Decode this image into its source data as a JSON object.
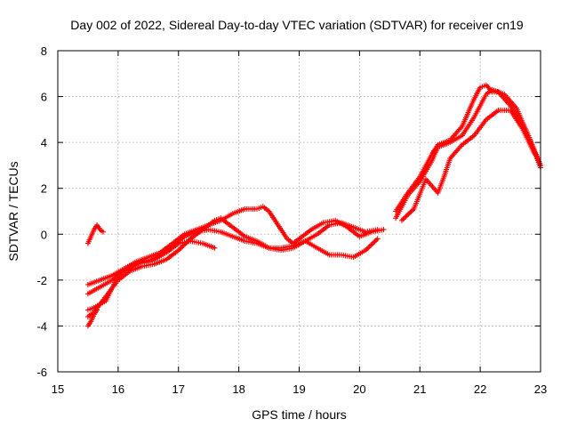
{
  "chart_data": {
    "type": "scatter",
    "title": "Day 002 of 2022, Sidereal Day-to-day VTEC variation (SDTVAR) for receiver cn19",
    "xlabel": "GPS time / hours",
    "ylabel": "SDTVAR / TECUs",
    "xlim": [
      15,
      23
    ],
    "ylim": [
      -6,
      8
    ],
    "xticks": [
      15,
      16,
      17,
      18,
      19,
      20,
      21,
      22,
      23
    ],
    "yticks": [
      -6,
      -4,
      -2,
      0,
      2,
      4,
      6,
      8
    ],
    "grid": true,
    "marker": "plus",
    "color": "#ff0000",
    "series": [
      {
        "name": "track-1",
        "points": [
          [
            15.5,
            -2.2
          ],
          [
            15.7,
            -2.0
          ],
          [
            15.9,
            -1.8
          ],
          [
            16.1,
            -1.5
          ],
          [
            16.3,
            -1.2
          ],
          [
            16.5,
            -1.0
          ],
          [
            16.7,
            -0.8
          ],
          [
            16.9,
            -0.4
          ],
          [
            17.1,
            0.0
          ],
          [
            17.3,
            0.2
          ],
          [
            17.5,
            0.4
          ],
          [
            17.7,
            0.6
          ],
          [
            17.9,
            0.9
          ],
          [
            18.1,
            1.1
          ],
          [
            18.3,
            1.1
          ],
          [
            18.4,
            1.2
          ],
          [
            18.5,
            1.0
          ],
          [
            18.6,
            0.6
          ],
          [
            18.7,
            0.2
          ],
          [
            18.8,
            -0.2
          ],
          [
            18.9,
            -0.4
          ],
          [
            19.0,
            -0.2
          ],
          [
            19.2,
            0.2
          ],
          [
            19.4,
            0.5
          ],
          [
            19.6,
            0.6
          ],
          [
            19.8,
            0.3
          ],
          [
            20.0,
            -0.1
          ],
          [
            20.2,
            0.1
          ],
          [
            20.4,
            0.2
          ]
        ]
      },
      {
        "name": "track-2",
        "points": [
          [
            15.5,
            -2.6
          ],
          [
            15.7,
            -2.3
          ],
          [
            15.9,
            -2.0
          ],
          [
            16.1,
            -1.6
          ],
          [
            16.3,
            -1.3
          ],
          [
            16.5,
            -1.2
          ],
          [
            16.7,
            -0.9
          ],
          [
            16.9,
            -0.5
          ],
          [
            17.1,
            -0.1
          ],
          [
            17.3,
            0.1
          ],
          [
            17.5,
            0.2
          ],
          [
            17.7,
            0.1
          ],
          [
            17.9,
            -0.1
          ],
          [
            18.1,
            -0.3
          ],
          [
            18.3,
            -0.4
          ],
          [
            18.5,
            -0.6
          ],
          [
            18.7,
            -0.7
          ],
          [
            18.9,
            -0.6
          ],
          [
            19.1,
            -0.3
          ],
          [
            19.3,
            0.0
          ],
          [
            19.5,
            0.4
          ],
          [
            19.7,
            0.5
          ],
          [
            19.9,
            0.3
          ],
          [
            20.1,
            0.1
          ],
          [
            20.3,
            0.2
          ]
        ]
      },
      {
        "name": "track-3",
        "points": [
          [
            15.5,
            -3.3
          ],
          [
            15.6,
            -3.2
          ],
          [
            15.8,
            -2.9
          ],
          [
            16.0,
            -1.8
          ],
          [
            16.2,
            -1.4
          ],
          [
            16.4,
            -1.2
          ],
          [
            16.6,
            -1.1
          ],
          [
            16.8,
            -0.8
          ],
          [
            17.0,
            -0.4
          ],
          [
            17.2,
            -0.3
          ],
          [
            17.4,
            -0.4
          ],
          [
            17.6,
            -0.6
          ]
        ]
      },
      {
        "name": "track-4",
        "points": [
          [
            15.5,
            -3.6
          ],
          [
            15.6,
            -3.4
          ],
          [
            15.8,
            -2.7
          ],
          [
            16.0,
            -2.0
          ],
          [
            16.2,
            -1.6
          ],
          [
            16.4,
            -1.4
          ],
          [
            16.6,
            -1.3
          ],
          [
            16.8,
            -1.1
          ],
          [
            17.0,
            -0.7
          ],
          [
            17.2,
            -0.2
          ],
          [
            17.4,
            0.2
          ],
          [
            17.6,
            0.6
          ],
          [
            17.7,
            0.7
          ],
          [
            17.9,
            0.3
          ],
          [
            18.1,
            -0.1
          ],
          [
            18.3,
            -0.3
          ],
          [
            18.5,
            -0.6
          ],
          [
            18.7,
            -0.6
          ],
          [
            18.9,
            -0.5
          ],
          [
            19.1,
            -0.3
          ],
          [
            19.3,
            -0.6
          ],
          [
            19.5,
            -0.9
          ],
          [
            19.7,
            -0.9
          ],
          [
            19.9,
            -1.0
          ],
          [
            20.1,
            -0.7
          ],
          [
            20.3,
            -0.2
          ]
        ]
      },
      {
        "name": "track-5",
        "points": [
          [
            15.5,
            -4.0
          ],
          [
            15.55,
            -3.8
          ],
          [
            15.6,
            -3.5
          ],
          [
            15.65,
            -3.3
          ]
        ]
      },
      {
        "name": "track-6",
        "points": [
          [
            15.5,
            -0.4
          ],
          [
            15.55,
            -0.1
          ],
          [
            15.6,
            0.2
          ],
          [
            15.65,
            0.4
          ],
          [
            15.7,
            0.2
          ],
          [
            15.75,
            0.1
          ]
        ]
      },
      {
        "name": "track-7",
        "points": [
          [
            20.6,
            0.7
          ],
          [
            20.8,
            1.7
          ],
          [
            21.0,
            2.3
          ],
          [
            21.2,
            3.2
          ],
          [
            21.3,
            3.8
          ],
          [
            21.5,
            4.0
          ],
          [
            21.7,
            4.3
          ],
          [
            21.9,
            5.1
          ],
          [
            22.1,
            6.1
          ],
          [
            22.2,
            6.3
          ],
          [
            22.4,
            6.1
          ],
          [
            22.6,
            5.5
          ],
          [
            22.8,
            4.3
          ],
          [
            23.0,
            3.0
          ]
        ]
      },
      {
        "name": "track-8",
        "points": [
          [
            20.6,
            1.0
          ],
          [
            20.8,
            1.8
          ],
          [
            21.0,
            2.5
          ],
          [
            21.2,
            3.5
          ],
          [
            21.3,
            3.9
          ],
          [
            21.5,
            4.1
          ],
          [
            21.7,
            4.7
          ],
          [
            21.8,
            5.3
          ],
          [
            21.9,
            5.9
          ],
          [
            22.0,
            6.4
          ],
          [
            22.1,
            6.5
          ],
          [
            22.2,
            6.2
          ],
          [
            22.3,
            6.2
          ],
          [
            22.5,
            5.6
          ],
          [
            22.7,
            4.8
          ],
          [
            22.9,
            3.6
          ],
          [
            23.0,
            2.9
          ]
        ]
      },
      {
        "name": "track-9",
        "points": [
          [
            20.7,
            0.6
          ],
          [
            20.9,
            1.1
          ],
          [
            21.1,
            2.4
          ],
          [
            21.3,
            1.8
          ],
          [
            21.4,
            2.5
          ],
          [
            21.5,
            3.3
          ],
          [
            21.7,
            3.9
          ],
          [
            21.9,
            4.3
          ],
          [
            22.1,
            5.0
          ],
          [
            22.3,
            5.4
          ],
          [
            22.5,
            5.4
          ],
          [
            22.7,
            4.6
          ],
          [
            22.9,
            3.5
          ]
        ]
      }
    ]
  }
}
